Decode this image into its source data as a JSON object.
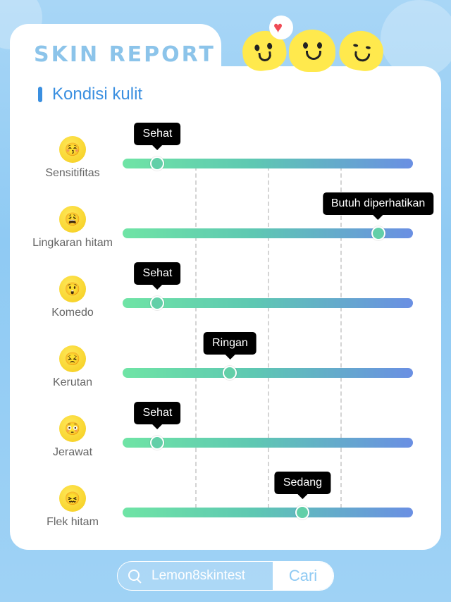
{
  "header": {
    "title": "SKIN REPORT"
  },
  "section": {
    "title": "Kondisi kulit"
  },
  "conditions": [
    {
      "label": "Sensitifitas",
      "status": "Sehat",
      "level": 0.12,
      "icon": "blushing-face-icon"
    },
    {
      "label": "Lingkaran hitam",
      "status": "Butuh diperhatikan",
      "level": 0.88,
      "icon": "tired-face-icon"
    },
    {
      "label": "Komedo",
      "status": "Sehat",
      "level": 0.12,
      "icon": "surprised-face-icon"
    },
    {
      "label": "Kerutan",
      "status": "Ringan",
      "level": 0.37,
      "icon": "frowning-face-icon"
    },
    {
      "label": "Jerawat",
      "status": "Sehat",
      "level": 0.12,
      "icon": "worried-face-icon"
    },
    {
      "label": "Flek hitam",
      "status": "Sedang",
      "level": 0.62,
      "icon": "winking-face-icon"
    }
  ],
  "search": {
    "query": "Lemon8skintest",
    "button_label": "Cari"
  },
  "colors": {
    "accent": "#3a8fe0",
    "track_start": "#6fe4a5",
    "track_end": "#6a8fe3",
    "tooltip": "#000000"
  }
}
